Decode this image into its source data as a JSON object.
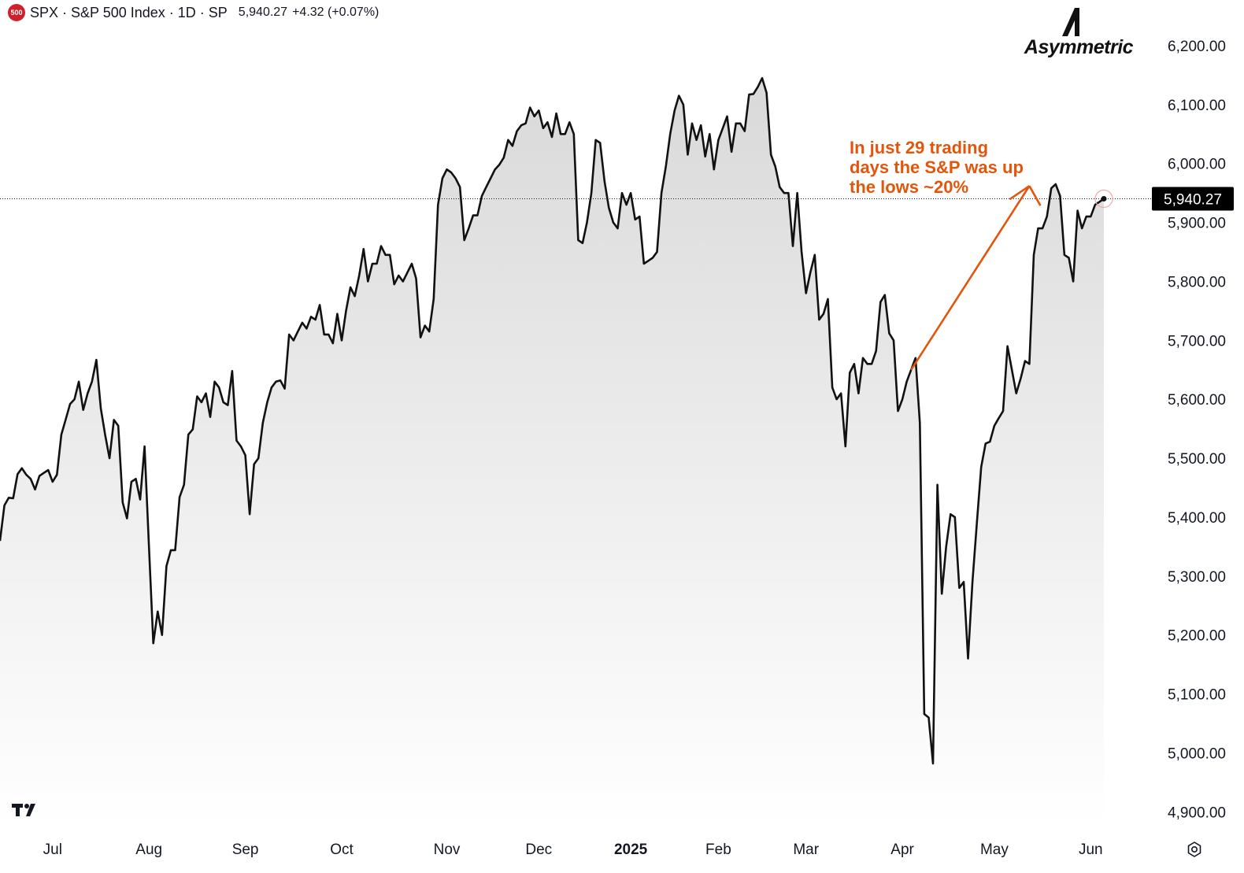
{
  "header": {
    "badge": "500",
    "title": "SPX · S&P 500 Index · 1D · SP",
    "price": "5,940.27",
    "change": "+4.32 (+0.07%)"
  },
  "logo": {
    "text": "Asymmetric"
  },
  "annotation": {
    "lines": [
      "In just 29 trading",
      "days the S&P was up",
      "the lows ~20%"
    ],
    "color": "#e2560c"
  },
  "colors": {
    "line": "#111111",
    "annotation": "#e2560c",
    "price_label_bg": "#000000",
    "area_top": "#dcdcdc"
  },
  "icons": {
    "tradingview_logo": "tradingview-logo-icon",
    "settings": "settings-icon"
  },
  "chart_data": {
    "type": "area",
    "title": "SPX · S&P 500 Index · 1D · SP",
    "xlabel": "",
    "ylabel": "",
    "ylim": [
      4880,
      6230
    ],
    "y_ticks": [
      "6,200.00",
      "6,100.00",
      "6,000.00",
      "5,900.00",
      "5,800.00",
      "5,700.00",
      "5,600.00",
      "5,500.00",
      "5,400.00",
      "5,300.00",
      "5,200.00",
      "5,100.00",
      "5,000.00",
      "4,900.00"
    ],
    "y_tick_values": [
      6200,
      6100,
      6000,
      5900,
      5800,
      5700,
      5600,
      5500,
      5400,
      5300,
      5200,
      5100,
      5000,
      4900
    ],
    "x_ticks": [
      "Jul",
      "Aug",
      "Sep",
      "Oct",
      "Nov",
      "Dec",
      "2025",
      "Feb",
      "Mar",
      "Apr",
      "May",
      "Jun"
    ],
    "x_tick_bold": [
      false,
      false,
      false,
      false,
      false,
      false,
      true,
      false,
      false,
      false,
      false,
      false
    ],
    "last_price_label": "5,940.27",
    "last_price": 5940.27,
    "grid": false,
    "series": [
      {
        "values": [
          5360,
          5420,
          5433,
          5432,
          5473,
          5483,
          5472,
          5465,
          5447,
          5470,
          5475,
          5480,
          5460,
          5472,
          5540,
          5566,
          5592,
          5600,
          5630,
          5582,
          5610,
          5630,
          5667,
          5585,
          5540,
          5500,
          5565,
          5555,
          5425,
          5398,
          5460,
          5465,
          5430,
          5520,
          5350,
          5186,
          5240,
          5200,
          5317,
          5344,
          5344,
          5434,
          5455,
          5540,
          5549,
          5605,
          5595,
          5610,
          5570,
          5630,
          5620,
          5595,
          5590,
          5648,
          5530,
          5520,
          5505,
          5405,
          5490,
          5500,
          5560,
          5595,
          5620,
          5630,
          5632,
          5618,
          5710,
          5700,
          5715,
          5730,
          5720,
          5740,
          5735,
          5760,
          5710,
          5710,
          5695,
          5745,
          5700,
          5750,
          5790,
          5775,
          5810,
          5855,
          5800,
          5830,
          5830,
          5860,
          5845,
          5845,
          5795,
          5810,
          5800,
          5815,
          5830,
          5805,
          5705,
          5725,
          5715,
          5770,
          5930,
          5975,
          5990,
          5985,
          5975,
          5960,
          5870,
          5890,
          5912,
          5912,
          5945,
          5960,
          5975,
          5990,
          5998,
          6010,
          6040,
          6030,
          6055,
          6065,
          6068,
          6095,
          6080,
          6090,
          6060,
          6070,
          6045,
          6085,
          6050,
          6050,
          6070,
          6050,
          5870,
          5865,
          5900,
          5950,
          6040,
          6035,
          5970,
          5925,
          5900,
          5890,
          5950,
          5930,
          5950,
          5905,
          5910,
          5830,
          5835,
          5840,
          5850,
          5950,
          5995,
          6050,
          6090,
          6115,
          6100,
          6015,
          6068,
          6040,
          6065,
          6012,
          6050,
          5990,
          6040,
          6060,
          6080,
          6020,
          6068,
          6068,
          6055,
          6117,
          6118,
          6130,
          6145,
          6120,
          6015,
          5995,
          5960,
          5950,
          5950,
          5860,
          5950,
          5850,
          5780,
          5815,
          5845,
          5735,
          5745,
          5770,
          5620,
          5600,
          5610,
          5520,
          5645,
          5660,
          5610,
          5670,
          5660,
          5660,
          5682,
          5765,
          5777,
          5712,
          5700,
          5580,
          5600,
          5630,
          5650,
          5670,
          5560,
          5066,
          5060,
          4982,
          5455,
          5270,
          5350,
          5405,
          5400,
          5280,
          5290,
          5160,
          5290,
          5390,
          5485,
          5525,
          5528,
          5555,
          5568,
          5580,
          5690,
          5650,
          5610,
          5635,
          5665,
          5660,
          5845,
          5890,
          5890,
          5910,
          5958,
          5965,
          5945,
          5845,
          5840,
          5800,
          5920,
          5890,
          5910,
          5910,
          5930,
          5935,
          5940.27
        ]
      }
    ]
  }
}
